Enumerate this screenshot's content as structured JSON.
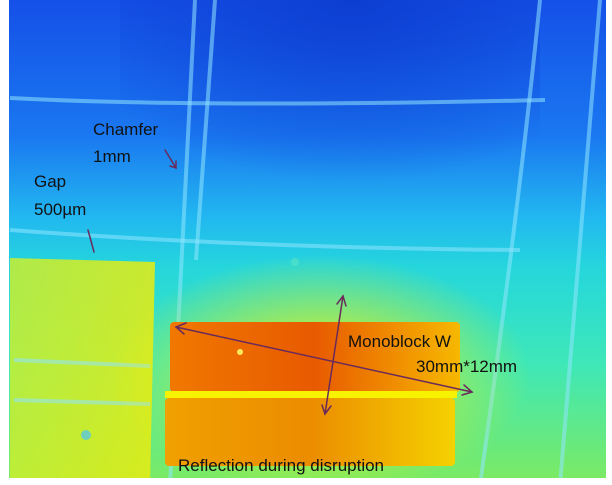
{
  "annotations": {
    "chamfer_label": "Chamfer",
    "chamfer_value": "1mm",
    "gap_label": "Gap",
    "gap_value": "500µm",
    "monoblock_label": "Monoblock W",
    "monoblock_dims": "30mm*12mm",
    "caption": "Reflection during disruption"
  },
  "colors": {
    "cold": "#1a4fe0",
    "mid": "#1fd8d8",
    "warm": "#e8e400",
    "hot": "#e05a00",
    "arrow": "#6a2a5a"
  }
}
